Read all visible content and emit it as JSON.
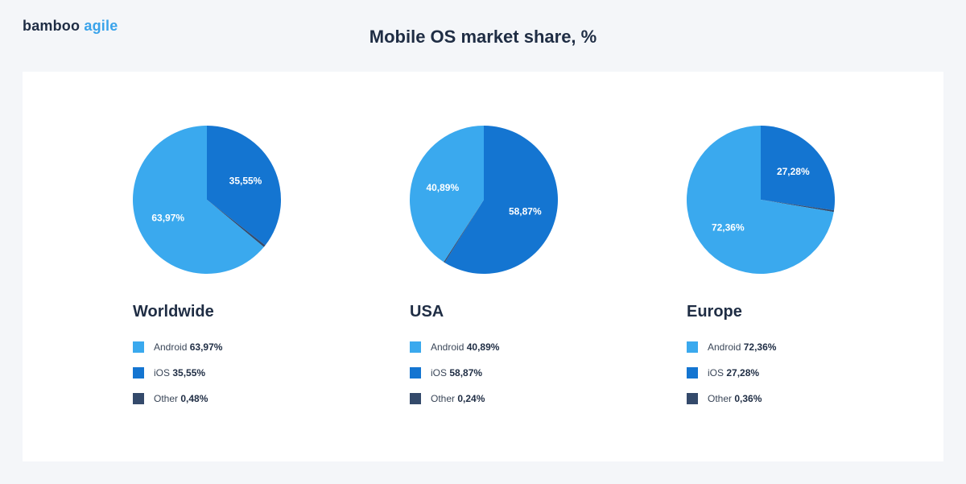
{
  "brand": {
    "name_part1": "bamboo",
    "name_part2": "agile"
  },
  "title": "Mobile OS market share, %",
  "colors": {
    "Android": "#3aa9ee",
    "iOS": "#1475d1",
    "Other": "#344a6b"
  },
  "chart_data": [
    {
      "type": "pie",
      "title": "Worldwide",
      "slices": [
        {
          "label": "Android",
          "value": 63.97,
          "display": "63,97%"
        },
        {
          "label": "iOS",
          "value": 35.55,
          "display": "35,55%"
        },
        {
          "label": "Other",
          "value": 0.48,
          "display": "0,48%"
        }
      ]
    },
    {
      "type": "pie",
      "title": "USA",
      "slices": [
        {
          "label": "Android",
          "value": 40.89,
          "display": "40,89%"
        },
        {
          "label": "iOS",
          "value": 58.87,
          "display": "58,87%"
        },
        {
          "label": "Other",
          "value": 0.24,
          "display": "0,24%"
        }
      ]
    },
    {
      "type": "pie",
      "title": "Europe",
      "slices": [
        {
          "label": "Android",
          "value": 72.36,
          "display": "72,36%"
        },
        {
          "label": "iOS",
          "value": 27.28,
          "display": "27,28%"
        },
        {
          "label": "Other",
          "value": 0.36,
          "display": "0,36%"
        }
      ]
    }
  ]
}
